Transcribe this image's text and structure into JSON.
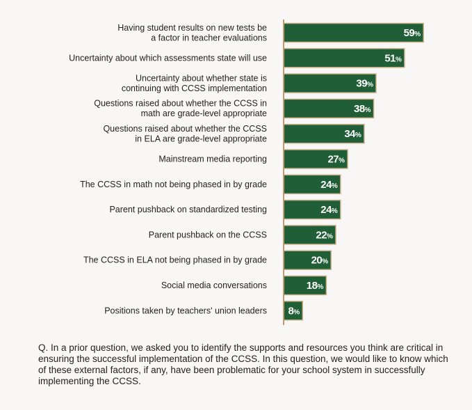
{
  "chart_data": {
    "type": "bar",
    "orientation": "horizontal",
    "categories": [
      [
        "Having student results on new tests be",
        "a factor in teacher evaluations"
      ],
      [
        "Uncertainty about which assessments state will use"
      ],
      [
        "Uncertainty about whether state is",
        "continuing with CCSS implementation"
      ],
      [
        "Questions raised about whether the CCSS in",
        "math are grade-level appropriate"
      ],
      [
        "Questions raised about whether the CCSS",
        "in ELA are grade-level appropriate"
      ],
      [
        "Mainstream media reporting"
      ],
      [
        "The CCSS in math not being phased in by grade"
      ],
      [
        "Parent pushback on standardized testing"
      ],
      [
        "Parent pushback on the CCSS"
      ],
      [
        "The CCSS in ELA not being phased in by grade"
      ],
      [
        "Social media conversations"
      ],
      [
        "Positions taken by teachers' union leaders"
      ]
    ],
    "values": [
      59,
      51,
      39,
      38,
      34,
      27,
      24,
      24,
      22,
      20,
      18,
      8
    ],
    "unit": "%",
    "xlim": [
      0,
      60
    ],
    "bar_color": "#1f5e36",
    "bar_border": "#c9b088",
    "axis_color": "#c09a6b"
  },
  "note": "Q. In a prior question, we asked you to identify the supports and resources you think are critical in ensuring the successful implementation of the CCSS. In this question, we would like to know which of these external factors, if any, have been problematic for your school system in successfully implementing the CCSS."
}
